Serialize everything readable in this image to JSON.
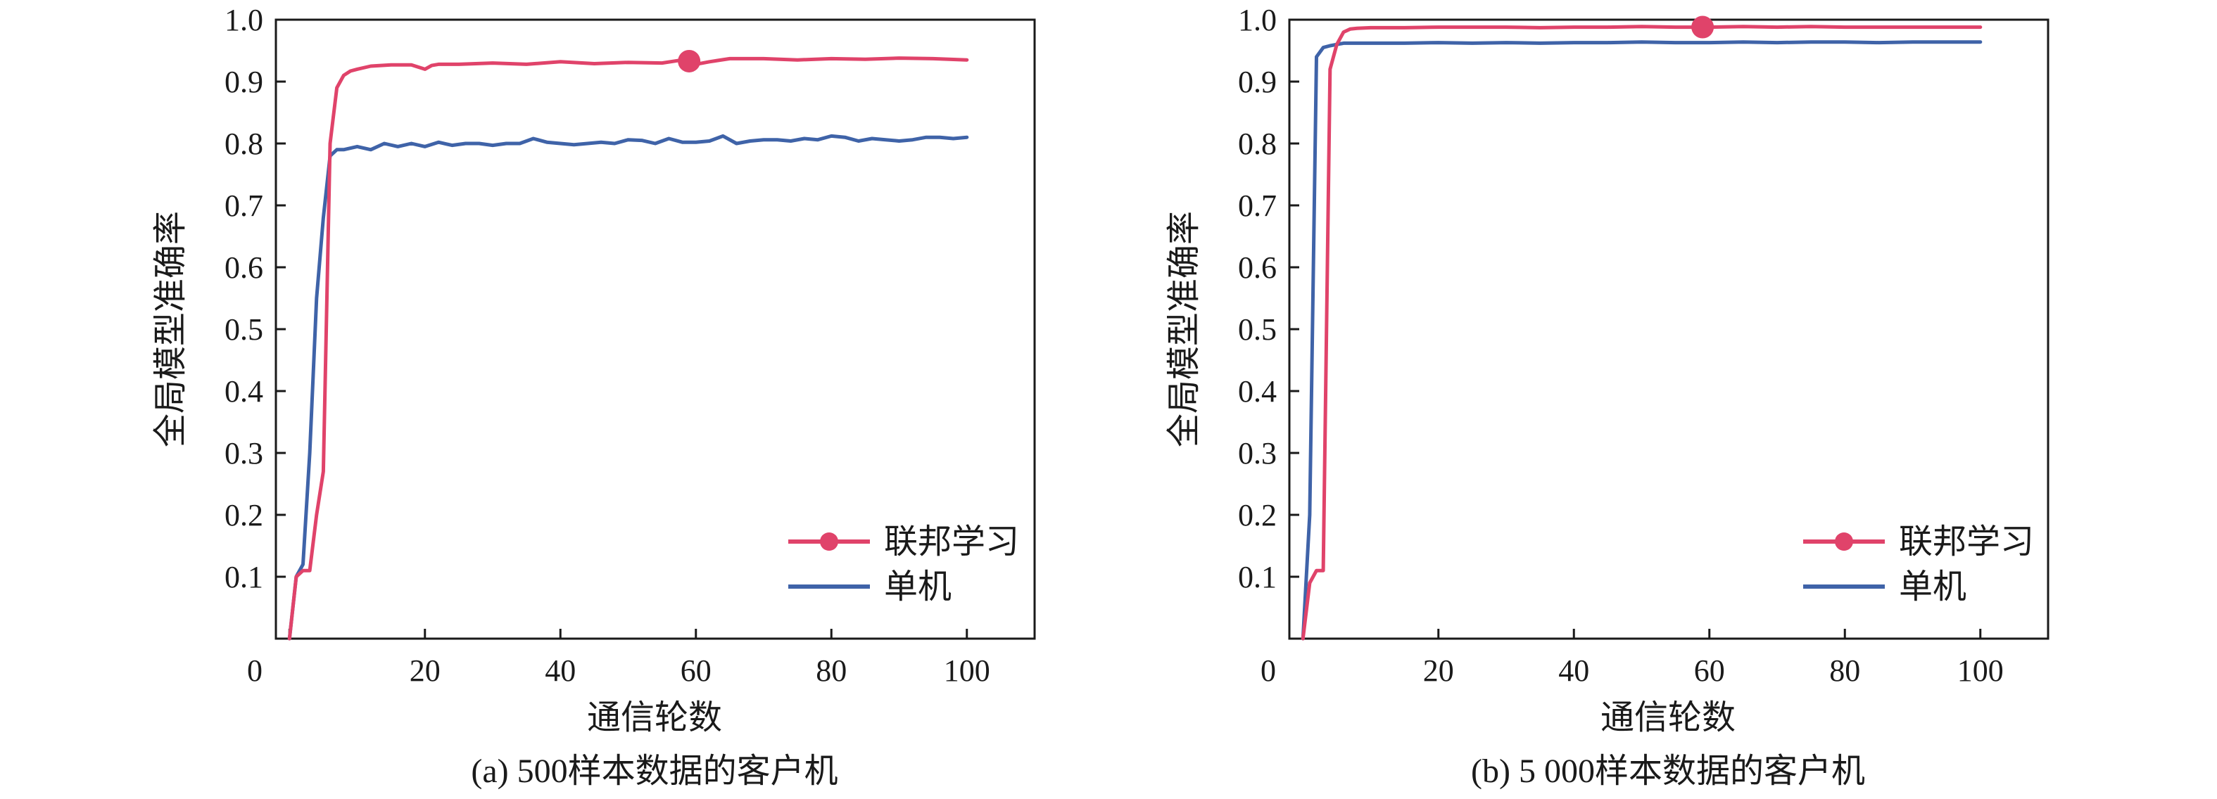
{
  "colors": {
    "federated": "#e0436a",
    "standalone": "#3f63a8",
    "axis": "#1a1a1a"
  },
  "chart_data": [
    {
      "type": "line",
      "caption": "(a)  500样本数据的客户机",
      "xlabel": "通信轮数",
      "ylabel": "全局模型准确率",
      "xlim": [
        -2,
        110
      ],
      "ylim": [
        0,
        1.0
      ],
      "xticks": [
        "0",
        "20",
        "40",
        "60",
        "80",
        "100"
      ],
      "yticks": [
        "0.1",
        "0.2",
        "0.3",
        "0.4",
        "0.5",
        "0.6",
        "0.7",
        "0.8",
        "0.9",
        "1.0"
      ],
      "legend_position": "bottom-right",
      "marker": {
        "series": "联邦学习",
        "x": 59,
        "y": 0.933
      },
      "series": [
        {
          "name": "联邦学习",
          "x": [
            0,
            1,
            2,
            3,
            4,
            5,
            6,
            7,
            8,
            9,
            10,
            12,
            15,
            18,
            20,
            21,
            22,
            25,
            30,
            35,
            40,
            45,
            50,
            55,
            58,
            60,
            62,
            65,
            70,
            75,
            80,
            85,
            90,
            95,
            100
          ],
          "y": [
            0.0,
            0.1,
            0.11,
            0.11,
            0.2,
            0.27,
            0.8,
            0.89,
            0.91,
            0.917,
            0.92,
            0.925,
            0.927,
            0.927,
            0.92,
            0.926,
            0.928,
            0.928,
            0.93,
            0.928,
            0.932,
            0.929,
            0.931,
            0.93,
            0.935,
            0.928,
            0.932,
            0.937,
            0.937,
            0.935,
            0.937,
            0.936,
            0.938,
            0.937,
            0.935
          ]
        },
        {
          "name": "单机",
          "x": [
            0,
            1,
            2,
            3,
            4,
            5,
            6,
            7,
            8,
            10,
            12,
            14,
            16,
            18,
            20,
            22,
            24,
            26,
            28,
            30,
            32,
            34,
            36,
            38,
            40,
            42,
            44,
            46,
            48,
            50,
            52,
            54,
            56,
            58,
            60,
            62,
            64,
            66,
            68,
            70,
            72,
            74,
            76,
            78,
            80,
            82,
            84,
            86,
            88,
            90,
            92,
            94,
            96,
            98,
            100
          ],
          "y": [
            0.0,
            0.1,
            0.12,
            0.3,
            0.55,
            0.68,
            0.78,
            0.79,
            0.79,
            0.795,
            0.79,
            0.8,
            0.795,
            0.8,
            0.795,
            0.802,
            0.797,
            0.8,
            0.8,
            0.797,
            0.8,
            0.8,
            0.808,
            0.802,
            0.8,
            0.798,
            0.8,
            0.802,
            0.8,
            0.806,
            0.805,
            0.8,
            0.808,
            0.802,
            0.802,
            0.804,
            0.812,
            0.8,
            0.804,
            0.806,
            0.806,
            0.804,
            0.808,
            0.806,
            0.812,
            0.81,
            0.804,
            0.808,
            0.806,
            0.804,
            0.806,
            0.81,
            0.81,
            0.808,
            0.81
          ]
        }
      ]
    },
    {
      "type": "line",
      "caption": "(b)  5 000样本数据的客户机",
      "xlabel": "通信轮数",
      "ylabel": "全局模型准确率",
      "xlim": [
        -2,
        110
      ],
      "ylim": [
        0,
        1.0
      ],
      "xticks": [
        "0",
        "20",
        "40",
        "60",
        "80",
        "100"
      ],
      "yticks": [
        "0.1",
        "0.2",
        "0.3",
        "0.4",
        "0.5",
        "0.6",
        "0.7",
        "0.8",
        "0.9",
        "1.0"
      ],
      "legend_position": "bottom-right",
      "marker": {
        "series": "联邦学习",
        "x": 59,
        "y": 0.988
      },
      "series": [
        {
          "name": "联邦学习",
          "x": [
            0,
            1,
            2,
            3,
            4,
            5,
            6,
            7,
            8,
            10,
            15,
            20,
            25,
            30,
            35,
            40,
            45,
            50,
            55,
            60,
            65,
            70,
            75,
            80,
            85,
            90,
            95,
            100
          ],
          "y": [
            0.0,
            0.09,
            0.11,
            0.11,
            0.92,
            0.96,
            0.98,
            0.985,
            0.986,
            0.987,
            0.987,
            0.988,
            0.988,
            0.988,
            0.987,
            0.988,
            0.988,
            0.989,
            0.988,
            0.988,
            0.989,
            0.988,
            0.989,
            0.988,
            0.988,
            0.988,
            0.988,
            0.988
          ]
        },
        {
          "name": "单机",
          "x": [
            0,
            1,
            2,
            3,
            4,
            5,
            6,
            8,
            10,
            15,
            20,
            25,
            30,
            35,
            40,
            45,
            50,
            55,
            60,
            65,
            70,
            75,
            80,
            85,
            90,
            95,
            100
          ],
          "y": [
            0.0,
            0.2,
            0.94,
            0.955,
            0.958,
            0.96,
            0.962,
            0.962,
            0.962,
            0.962,
            0.963,
            0.962,
            0.963,
            0.962,
            0.963,
            0.963,
            0.964,
            0.963,
            0.963,
            0.964,
            0.963,
            0.964,
            0.964,
            0.963,
            0.964,
            0.964,
            0.964
          ]
        }
      ]
    }
  ]
}
